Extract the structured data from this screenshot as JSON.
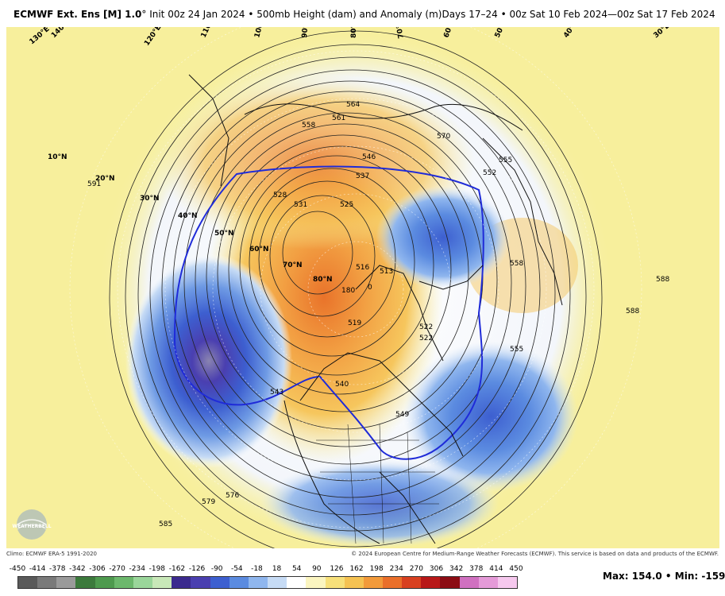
{
  "title": {
    "product": "ECMWF Ext. Ens [M] 1.0",
    "degree": "°",
    "details": " Init 00z 24 Jan 2024 • 500mb Height (dam) and Anomaly (m)Days 17–24 • 00z Sat 10 Feb 2024—00z Sat 17 Feb 2024"
  },
  "map": {
    "lat_labels": [
      "10°N",
      "20°N",
      "30°N",
      "40°N",
      "50°N",
      "60°N",
      "70°N",
      "80°N"
    ],
    "lon_labels": [
      "130°E",
      "140°E",
      "120°E",
      "110°E",
      "100°E",
      "90°E",
      "80°E",
      "70°E",
      "60°E",
      "50°E",
      "40°E",
      "30°E"
    ],
    "contour_labels": [
      "564",
      "561",
      "558",
      "546",
      "537",
      "528",
      "525",
      "516",
      "519",
      "522",
      "513",
      "180",
      "0",
      "522",
      "549",
      "555",
      "543",
      "540",
      "531",
      "576",
      "579",
      "585",
      "588",
      "591",
      "588",
      "558",
      "552",
      "555",
      "570"
    ],
    "anomaly_contour": "blue"
  },
  "credits": {
    "climo": "Climo: ECMWF ERA-5 1991-2020",
    "copyright": "© 2024 European Centre for Medium-Range Weather Forecasts (ECMWF). This service is based on data and products of the ECMWF."
  },
  "colorbar": {
    "ticks": [
      "-450",
      "-414",
      "-378",
      "-342",
      "-306",
      "-270",
      "-234",
      "-198",
      "-162",
      "-126",
      "-90",
      "-54",
      "-18",
      "18",
      "54",
      "90",
      "126",
      "162",
      "198",
      "234",
      "270",
      "306",
      "342",
      "378",
      "414",
      "450"
    ],
    "colors": [
      "#5a5a5a",
      "#7a7a7a",
      "#9a9a9a",
      "#3c7a3c",
      "#4e9a4e",
      "#6cb86c",
      "#9ad69a",
      "#c8e8b8",
      "#3b2a8e",
      "#4a3fb0",
      "#3d5fd0",
      "#5b8be0",
      "#8fb6ee",
      "#c6dbf5",
      "#ffffff",
      "#fbf5c0",
      "#f7e07a",
      "#f5c252",
      "#f29a3a",
      "#ea6f2a",
      "#d84020",
      "#b81818",
      "#8c0c14",
      "#d070c0",
      "#e59ad8",
      "#f6c8ee"
    ]
  },
  "stats": {
    "max_label": "Max:",
    "max_value": "154.0",
    "sep": "•",
    "min_label": "Min:",
    "min_value": "-159.2"
  },
  "logo": {
    "text": "WEATHERBELL"
  }
}
